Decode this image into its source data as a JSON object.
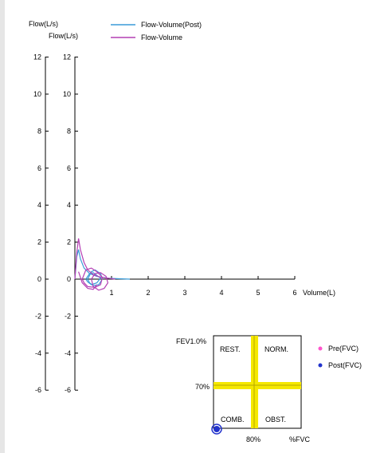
{
  "chart_data": [
    {
      "type": "line",
      "legend_position": "top-center",
      "left_axis_label": "Flow(L/s)",
      "inner_axis_label": "Flow(L/s)",
      "xlabel": "Volume(L)",
      "xlim": [
        0,
        6
      ],
      "ylim": [
        -6,
        12
      ],
      "x_ticks": [
        "1",
        "2",
        "3",
        "4",
        "5",
        "6"
      ],
      "y_ticks_left": [
        "12",
        "10",
        "8",
        "6",
        "4",
        "2",
        "0",
        "-2",
        "-4",
        "-6"
      ],
      "y_ticks_inner": [
        "12",
        "10",
        "8",
        "6",
        "4",
        "2",
        "0",
        "-2",
        "-4",
        "-6"
      ],
      "grid": false,
      "series": [
        {
          "name": "Flow-Volume(Post)",
          "color": "#3a9bd8",
          "loops": [
            [
              [
                0,
                0
              ],
              [
                0.05,
                1.2
              ],
              [
                0.1,
                1.6
              ],
              [
                0.15,
                1.1
              ],
              [
                0.25,
                0.6
              ],
              [
                0.4,
                0.3
              ],
              [
                0.6,
                0.15
              ],
              [
                0.9,
                0.05
              ],
              [
                1.2,
                0.02
              ],
              [
                1.5,
                0
              ]
            ],
            [
              [
                0.3,
                0
              ],
              [
                0.4,
                0.3
              ],
              [
                0.5,
                0.35
              ],
              [
                0.6,
                0.2
              ],
              [
                0.7,
                0.05
              ],
              [
                0.6,
                -0.2
              ],
              [
                0.45,
                -0.3
              ],
              [
                0.35,
                -0.15
              ],
              [
                0.3,
                0
              ]
            ],
            [
              [
                0.35,
                0
              ],
              [
                0.45,
                0.4
              ],
              [
                0.55,
                0.5
              ],
              [
                0.7,
                0.3
              ],
              [
                0.75,
                0
              ],
              [
                0.65,
                -0.3
              ],
              [
                0.5,
                -0.35
              ],
              [
                0.4,
                -0.2
              ],
              [
                0.35,
                0
              ]
            ]
          ]
        },
        {
          "name": "Flow-Volume",
          "color": "#b43fb4",
          "loops": [
            [
              [
                0,
                0
              ],
              [
                0.05,
                1.4
              ],
              [
                0.1,
                2.2
              ],
              [
                0.15,
                1.6
              ],
              [
                0.25,
                0.9
              ],
              [
                0.35,
                0.5
              ],
              [
                0.5,
                0.25
              ],
              [
                0.7,
                0.1
              ],
              [
                0.9,
                0.05
              ],
              [
                1.1,
                0
              ]
            ],
            [
              [
                0.2,
                0
              ],
              [
                0.3,
                0.5
              ],
              [
                0.45,
                0.6
              ],
              [
                0.6,
                0.4
              ],
              [
                0.75,
                0.1
              ],
              [
                0.7,
                -0.3
              ],
              [
                0.55,
                -0.45
              ],
              [
                0.35,
                -0.4
              ],
              [
                0.25,
                -0.2
              ],
              [
                0.2,
                0
              ]
            ],
            [
              [
                0.45,
                0
              ],
              [
                0.55,
                0.3
              ],
              [
                0.7,
                0.35
              ],
              [
                0.85,
                0.15
              ],
              [
                0.9,
                -0.2
              ],
              [
                0.8,
                -0.5
              ],
              [
                0.65,
                -0.6
              ],
              [
                0.5,
                -0.4
              ],
              [
                0.45,
                0
              ]
            ],
            [
              [
                0.1,
                0.4
              ],
              [
                0.2,
                -0.2
              ],
              [
                0.35,
                -0.5
              ],
              [
                0.5,
                -0.55
              ],
              [
                0.6,
                -0.3
              ]
            ]
          ]
        }
      ]
    },
    {
      "type": "scatter",
      "x_axis_label": "%FVC",
      "y_axis_label": "FEV1.0%",
      "x_threshold_label": "80%",
      "y_threshold_label": "70%",
      "x_threshold": 80,
      "y_threshold": 70,
      "quadrants": {
        "top_left": "REST.",
        "top_right": "NORM.",
        "bottom_left": "COMB.",
        "bottom_right": "OBST."
      },
      "threshold_color": "#f5e800",
      "legend": [
        {
          "name": "Pre(FVC)",
          "color": "#ff55cc"
        },
        {
          "name": "Post(FVC)",
          "color": "#2233cc"
        }
      ],
      "points": [
        {
          "series": "Post(FVC)",
          "x": 0,
          "y": 0
        }
      ]
    }
  ]
}
